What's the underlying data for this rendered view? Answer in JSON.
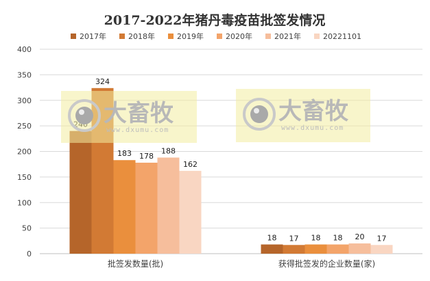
{
  "chart_data": {
    "type": "bar",
    "title": "2017-2022年猪丹毒疫苗批签发情况",
    "categories": [
      "批签发数量(批)",
      "获得批签发的企业数量(家)"
    ],
    "series": [
      {
        "name": "2017年",
        "color": "#b5652a",
        "values": [
          240,
          18
        ]
      },
      {
        "name": "2018年",
        "color": "#d27a34",
        "values": [
          324,
          17
        ]
      },
      {
        "name": "2019年",
        "color": "#ea8f3d",
        "values": [
          183,
          18
        ]
      },
      {
        "name": "2020年",
        "color": "#f3a46a",
        "values": [
          178,
          18
        ]
      },
      {
        "name": "2021年",
        "color": "#f6be9c",
        "values": [
          188,
          20
        ]
      },
      {
        "name": "20221101",
        "color": "#f9d6c2",
        "values": [
          162,
          17
        ]
      }
    ],
    "ylim": [
      0,
      400
    ],
    "yticks": [
      0,
      50,
      100,
      150,
      200,
      250,
      300,
      350,
      400
    ],
    "grid": true,
    "legend_position": "top"
  },
  "watermark": {
    "brand": "大畜牧",
    "url": "www.dxumu.com"
  }
}
